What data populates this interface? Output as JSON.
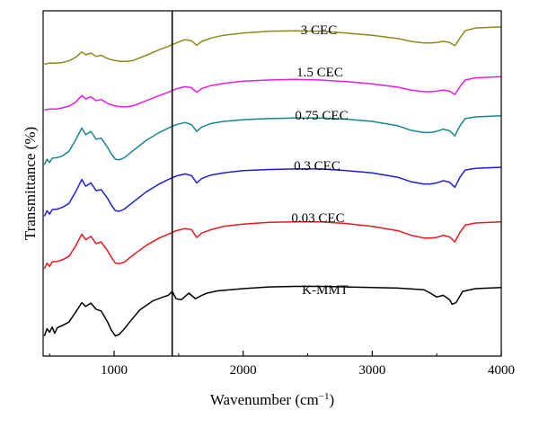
{
  "chart_data": {
    "type": "line",
    "title": "",
    "xlabel": "Wavenumber (cm−1)",
    "xlabel_parts": {
      "text": "Wavenumber (cm",
      "sup": "−1",
      "close": ")"
    },
    "ylabel": "Transmittance (%)",
    "xlim": [
      450,
      4000
    ],
    "xticks": [
      1000,
      2000,
      3000,
      4000
    ],
    "xtick_labels": [
      "1000",
      "2000",
      "3000",
      "4000"
    ],
    "y_ticks_shown": false,
    "grid": false,
    "legend": "inline labels above each curve",
    "reference_line_x": 1450,
    "series": [
      {
        "name": "K-MMT",
        "color": "#000000",
        "x": [
          460,
          480,
          500,
          520,
          540,
          560,
          600,
          650,
          700,
          750,
          780,
          820,
          860,
          900,
          950,
          980,
          1010,
          1040,
          1080,
          1120,
          1200,
          1300,
          1380,
          1420,
          1450,
          1480,
          1520,
          1580,
          1630,
          1680,
          1720,
          1800,
          1900,
          2000,
          2200,
          2400,
          2600,
          2800,
          3000,
          3200,
          3400,
          3450,
          3500,
          3550,
          3600,
          3620,
          3650,
          3700,
          3800,
          4000
        ],
        "y": [
          15,
          28,
          22,
          31,
          20,
          30,
          34,
          40,
          57,
          75,
          68,
          74,
          63,
          60,
          40,
          25,
          15,
          18,
          28,
          40,
          62,
          78,
          85,
          88,
          95,
          82,
          80,
          92,
          82,
          88,
          92,
          96,
          98,
          100,
          103,
          104,
          104,
          103,
          102,
          101,
          98,
          92,
          85,
          88,
          80,
          72,
          75,
          95,
          100,
          102
        ]
      },
      {
        "name": "0.03 CEC",
        "color": "#e8191f",
        "x": [
          460,
          480,
          500,
          520,
          560,
          600,
          650,
          700,
          750,
          780,
          820,
          860,
          900,
          950,
          980,
          1010,
          1040,
          1080,
          1150,
          1250,
          1350,
          1420,
          1480,
          1550,
          1600,
          1640,
          1680,
          1750,
          1850,
          2000,
          2200,
          2400,
          2600,
          2800,
          3000,
          3200,
          3300,
          3400,
          3450,
          3500,
          3550,
          3600,
          3640,
          3680,
          3720,
          3800,
          4000
        ],
        "y": [
          10,
          20,
          14,
          22,
          23,
          26,
          32,
          50,
          72,
          62,
          68,
          55,
          58,
          42,
          30,
          20,
          19,
          22,
          35,
          52,
          65,
          72,
          78,
          82,
          80,
          66,
          74,
          80,
          86,
          90,
          93,
          94,
          94,
          91,
          86,
          78,
          70,
          65,
          65,
          66,
          70,
          67,
          58,
          75,
          88,
          92,
          94
        ]
      },
      {
        "name": "0.3 CEC",
        "color": "#1f1fd6",
        "x": [
          460,
          480,
          500,
          520,
          560,
          600,
          650,
          700,
          750,
          780,
          820,
          860,
          900,
          950,
          980,
          1010,
          1040,
          1080,
          1150,
          1250,
          1350,
          1420,
          1480,
          1550,
          1600,
          1640,
          1680,
          1750,
          1850,
          2000,
          2200,
          2400,
          2600,
          2800,
          3000,
          3200,
          3300,
          3400,
          3450,
          3500,
          3550,
          3600,
          3640,
          3680,
          3720,
          3800,
          4000
        ],
        "y": [
          12,
          22,
          16,
          24,
          25,
          28,
          35,
          55,
          78,
          66,
          72,
          58,
          60,
          44,
          32,
          22,
          21,
          25,
          38,
          56,
          70,
          78,
          84,
          88,
          85,
          72,
          80,
          86,
          90,
          94,
          96,
          97,
          97,
          94,
          90,
          82,
          74,
          70,
          70,
          72,
          76,
          73,
          64,
          82,
          95,
          98,
          100
        ]
      },
      {
        "name": "0.75 CEC",
        "color": "#17878a",
        "x": [
          460,
          480,
          500,
          520,
          560,
          600,
          650,
          700,
          750,
          780,
          820,
          860,
          900,
          950,
          980,
          1010,
          1040,
          1080,
          1150,
          1250,
          1350,
          1420,
          1480,
          1550,
          1600,
          1640,
          1680,
          1750,
          1850,
          2000,
          2200,
          2400,
          2600,
          2800,
          3000,
          3200,
          3300,
          3400,
          3450,
          3500,
          3550,
          3600,
          3640,
          3680,
          3720,
          3800,
          4000
        ],
        "y": [
          14,
          24,
          18,
          26,
          27,
          30,
          38,
          58,
          80,
          68,
          74,
          60,
          62,
          45,
          33,
          24,
          23,
          27,
          40,
          58,
          72,
          80,
          86,
          90,
          86,
          74,
          82,
          88,
          92,
          95,
          97,
          98,
          98,
          96,
          92,
          84,
          76,
          72,
          72,
          74,
          78,
          75,
          66,
          84,
          97,
          100,
          102
        ]
      },
      {
        "name": "1.5 CEC",
        "color": "#e61ee6",
        "x": [
          460,
          500,
          550,
          600,
          650,
          700,
          750,
          780,
          820,
          860,
          900,
          950,
          1000,
          1050,
          1100,
          1150,
          1250,
          1350,
          1420,
          1480,
          1550,
          1600,
          1640,
          1680,
          1750,
          1850,
          2000,
          2200,
          2400,
          2600,
          2800,
          3000,
          3200,
          3300,
          3400,
          3450,
          3500,
          3550,
          3600,
          3640,
          3680,
          3720,
          3800,
          4000
        ],
        "y": [
          38,
          40,
          40,
          42,
          45,
          52,
          64,
          58,
          62,
          55,
          57,
          50,
          46,
          44,
          44,
          46,
          55,
          64,
          70,
          76,
          80,
          78,
          70,
          77,
          82,
          86,
          90,
          92,
          93,
          92,
          89,
          85,
          79,
          74,
          71,
          71,
          72,
          74,
          72,
          66,
          80,
          92,
          96,
          98
        ]
      },
      {
        "name": "3 CEC",
        "color": "#8a8a1a",
        "x": [
          460,
          500,
          550,
          600,
          650,
          700,
          750,
          780,
          820,
          860,
          900,
          950,
          1000,
          1050,
          1100,
          1150,
          1250,
          1350,
          1420,
          1480,
          1550,
          1600,
          1640,
          1680,
          1750,
          1850,
          2000,
          2200,
          2400,
          2600,
          2800,
          3000,
          3200,
          3300,
          3400,
          3450,
          3500,
          3550,
          3600,
          3640,
          3680,
          3720,
          3800,
          4000
        ],
        "y": [
          30,
          32,
          32,
          33,
          36,
          42,
          52,
          47,
          50,
          44,
          46,
          40,
          37,
          35,
          35,
          37,
          46,
          56,
          62,
          68,
          74,
          72,
          64,
          71,
          77,
          82,
          86,
          89,
          90,
          89,
          86,
          82,
          76,
          71,
          68,
          68,
          69,
          71,
          69,
          63,
          77,
          90,
          95,
          97
        ]
      }
    ]
  }
}
